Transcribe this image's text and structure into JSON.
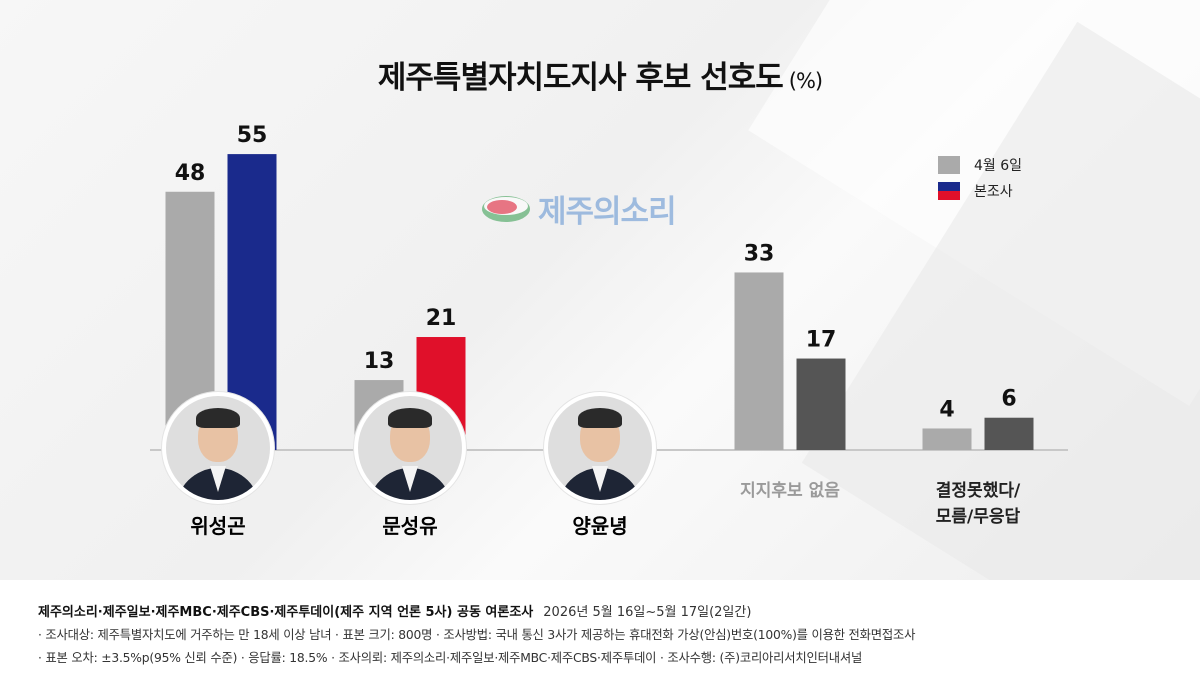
{
  "title": "제주특별자치도지사 후보 선호도",
  "title_unit": "(%)",
  "watermark": "제주의소리",
  "legend": {
    "prev_label": "4월 6일",
    "cur_label": "본조사"
  },
  "colors": {
    "prev": "#aaaaaa",
    "wi": "#1a2a8c",
    "moon": "#e0102a",
    "neutral_cur": "#555555",
    "baseline": "#c8c8c8"
  },
  "chart_data": {
    "type": "bar",
    "title": "제주특별자치도지사 후보 선호도",
    "unit": "%",
    "categories": [
      "위성곤",
      "문성유",
      "양윤녕",
      "지지후보 없음",
      "결정못했다/모름/무응답"
    ],
    "series": [
      {
        "name": "4월 6일",
        "values": [
          48,
          13,
          0,
          33,
          4
        ]
      },
      {
        "name": "본조사",
        "values": [
          55,
          21,
          1,
          17,
          6
        ]
      }
    ],
    "cur_colors": [
      "#1a2a8c",
      "#e0102a",
      "#e0102a",
      "#555555",
      "#555555"
    ],
    "ylim": [
      0,
      55
    ],
    "grid": false,
    "legend_position": "top-right"
  },
  "candidates": [
    {
      "name": "위성곤",
      "color": "#1a2a8c"
    },
    {
      "name": "문성유",
      "color": "#e0102a"
    },
    {
      "name": "양윤녕",
      "color": "#333333"
    }
  ],
  "other_labels": {
    "no_support": "지지후보 없음",
    "undecided_line1": "결정못했다/",
    "undecided_line2": "모름/무응답"
  },
  "footer": {
    "sponsor": "제주의소리·제주일보·제주MBC·제주CBS·제주투데이(제주 지역 언론 5사) 공동 여론조사",
    "date": "2026년 5월 16일~5월 17일(2일간)",
    "line2": "· 조사대상: 제주특별자치도에 거주하는 만 18세 이상 남녀 · 표본 크기: 800명 · 조사방법: 국내 통신 3사가 제공하는 휴대전화 가상(안심)번호(100%)를 이용한 전화면접조사",
    "line3": "· 표본 오차: ±3.5%p(95% 신뢰 수준) · 응답률: 18.5% · 조사의뢰: 제주의소리·제주일보·제주MBC·제주CBS·제주투데이  · 조사수행: (주)코리아리서치인터내셔널"
  }
}
